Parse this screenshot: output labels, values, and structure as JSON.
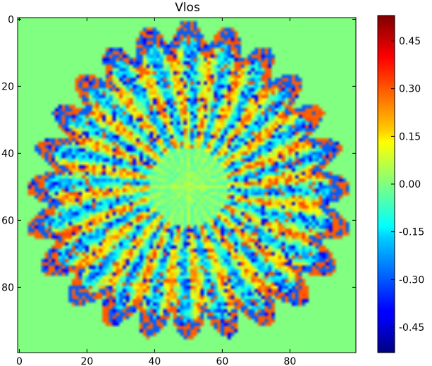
{
  "chart_data": {
    "type": "heatmap",
    "title": "Vlos",
    "xlabel": "",
    "ylabel": "",
    "x_range": [
      0,
      99
    ],
    "y_range": [
      0,
      99
    ],
    "x_ticks": [
      "0",
      "20",
      "40",
      "60",
      "80"
    ],
    "y_ticks": [
      "0",
      "20",
      "40",
      "60",
      "80"
    ],
    "colormap": "jet",
    "color_range": [
      -0.53,
      0.53
    ],
    "colorbar_ticks": [
      "0.45",
      "0.30",
      "0.15",
      "0.00",
      "-0.15",
      "-0.30",
      "-0.45"
    ],
    "grid": false,
    "description_free_pattern": {
      "center": [
        50,
        50
      ],
      "petals": 24,
      "background_value": 0.0
    }
  }
}
